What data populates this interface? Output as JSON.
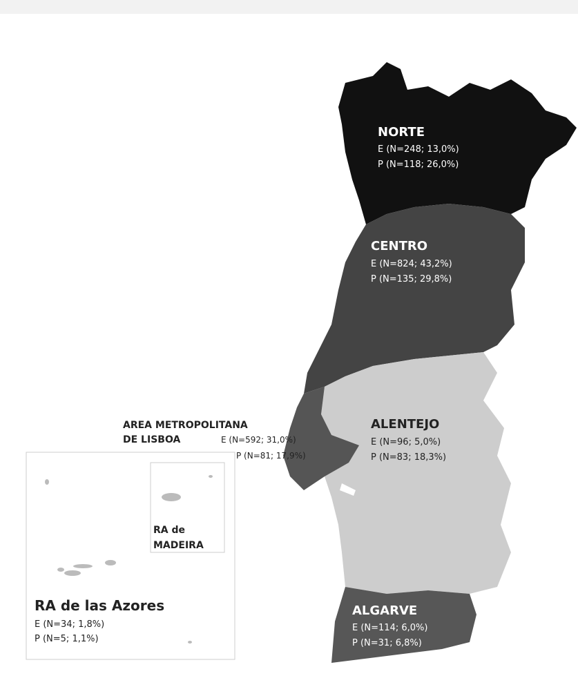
{
  "regions": [
    {
      "name": [
        "NORTE"
      ],
      "e": "E (N=248; 13,0%)",
      "p": "P (N=118; 26,0%)"
    },
    {
      "name": [
        "CENTRO"
      ],
      "e": "E (N=824; 43,2%)",
      "p": "P (N=135; 29,8%)"
    },
    {
      "name": [
        "ALENTEJO"
      ],
      "e": "E (N=96; 5,0%)",
      "p": "P (N=83; 18,3%)"
    },
    {
      "name": [
        "AREA METROPOLITANA",
        "DE LISBOA"
      ],
      "e": "E (N=592; 31,0%)",
      "p": "P (N=81; 17,9%)"
    },
    {
      "name": [
        "ALGARVE"
      ],
      "e": "E (N=114; 6,0%)",
      "p": "P (N=31; 6,8%)"
    },
    {
      "name": [
        "RA de las Azores"
      ],
      "e": "E (N=34; 1,8%)",
      "p": "P (N=5; 1,1%)"
    },
    {
      "name": [
        "RA de",
        "MADEIRA"
      ]
    }
  ]
}
